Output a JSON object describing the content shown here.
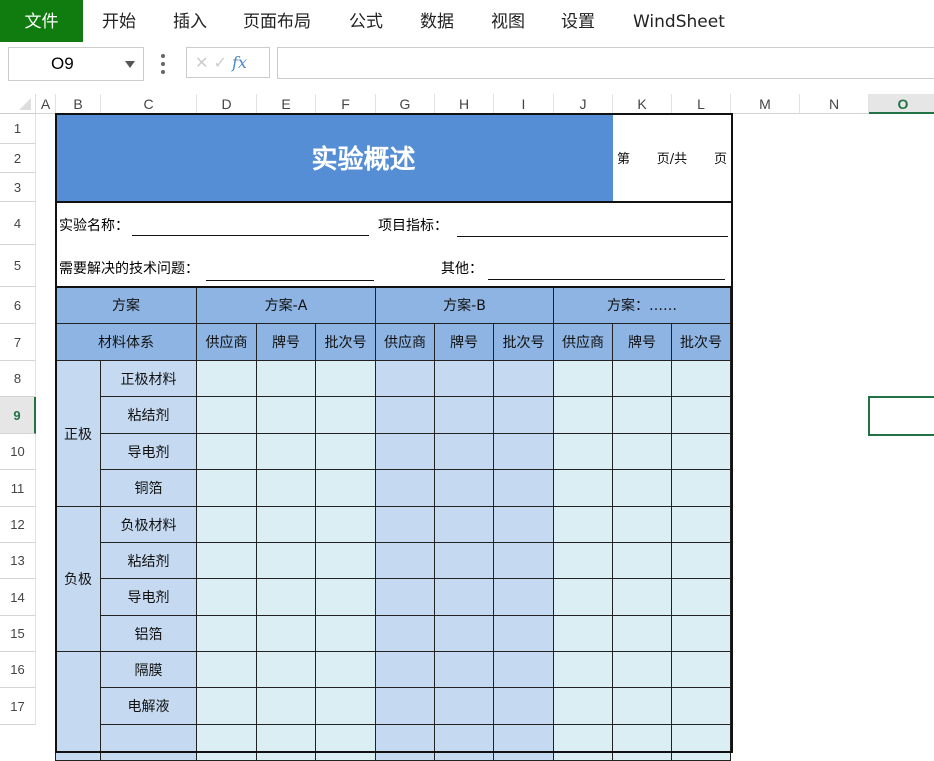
{
  "menu": [
    "文件",
    "开始",
    "插入",
    "页面布局",
    "公式",
    "数据",
    "视图",
    "设置",
    "WindSheet"
  ],
  "namebox": "O9",
  "formula": {
    "cancel": "✕",
    "confirm": "✓",
    "fx": "fx",
    "value": ""
  },
  "columns": [
    "A",
    "B",
    "C",
    "D",
    "E",
    "F",
    "G",
    "H",
    "I",
    "J",
    "K",
    "L",
    "M",
    "N",
    "O"
  ],
  "rows": [
    "1",
    "2",
    "3",
    "4",
    "5",
    "6",
    "7",
    "8",
    "9",
    "10",
    "11",
    "12",
    "13",
    "14",
    "15",
    "16",
    "17"
  ],
  "selected": {
    "column": "O",
    "row": "9"
  },
  "sheet": {
    "title": "实验概述",
    "page_info": {
      "a": "第",
      "b": "页/共",
      "c": "页"
    },
    "experiment_name_label": "实验名称：",
    "project_metric_label": "项目指标：",
    "tech_problem_label": "需要解决的技术问题：",
    "other_label": "其他：",
    "scheme_label": "方案",
    "schemes": [
      "方案-A",
      "方案-B",
      "方案：……"
    ],
    "material_system_label": "材料体系",
    "sub_headers": [
      "供应商",
      "牌号",
      "批次号"
    ],
    "groups": [
      {
        "name": "正极",
        "items": [
          "正极材料",
          "粘结剂",
          "导电剂",
          "铜箔"
        ]
      },
      {
        "name": "负极",
        "items": [
          "负极材料",
          "粘结剂",
          "导电剂",
          "铝箔"
        ]
      },
      {
        "name": "",
        "items": [
          "隔膜",
          "电解液",
          ""
        ]
      }
    ]
  },
  "colors": {
    "title": "#558ED5",
    "header": "#8DB4E2",
    "label": "#C5D9F1",
    "scheme_a": "#DAEEF3",
    "scheme_b": "#C5D9F1",
    "selection": "#217346",
    "file_tab": "#107c10"
  }
}
